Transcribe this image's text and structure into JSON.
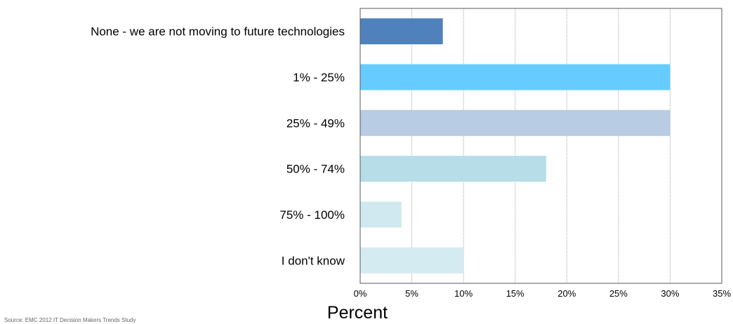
{
  "chart_data": {
    "type": "bar",
    "orientation": "horizontal",
    "categories": [
      "None - we are not moving to future technologies",
      "1% - 25%",
      "25% - 49%",
      "50% - 74%",
      "75% - 100%",
      "I don't know"
    ],
    "values": [
      8,
      30,
      30,
      18,
      4,
      10
    ],
    "bar_colors": [
      "#4f81bd",
      "#66ccff",
      "#b8cce4",
      "#b6dde8",
      "#d0e9f0",
      "#d5ebf2"
    ],
    "xlabel": "Percent",
    "xlim": [
      0,
      35
    ],
    "x_ticks": [
      "0%",
      "5%",
      "10%",
      "15%",
      "20%",
      "25%",
      "30%",
      "35%"
    ],
    "grid": "vertical",
    "legend": "none"
  },
  "footer": {
    "source_note": "Source: EMC 2012 IT Decision Makers Trends Study"
  }
}
